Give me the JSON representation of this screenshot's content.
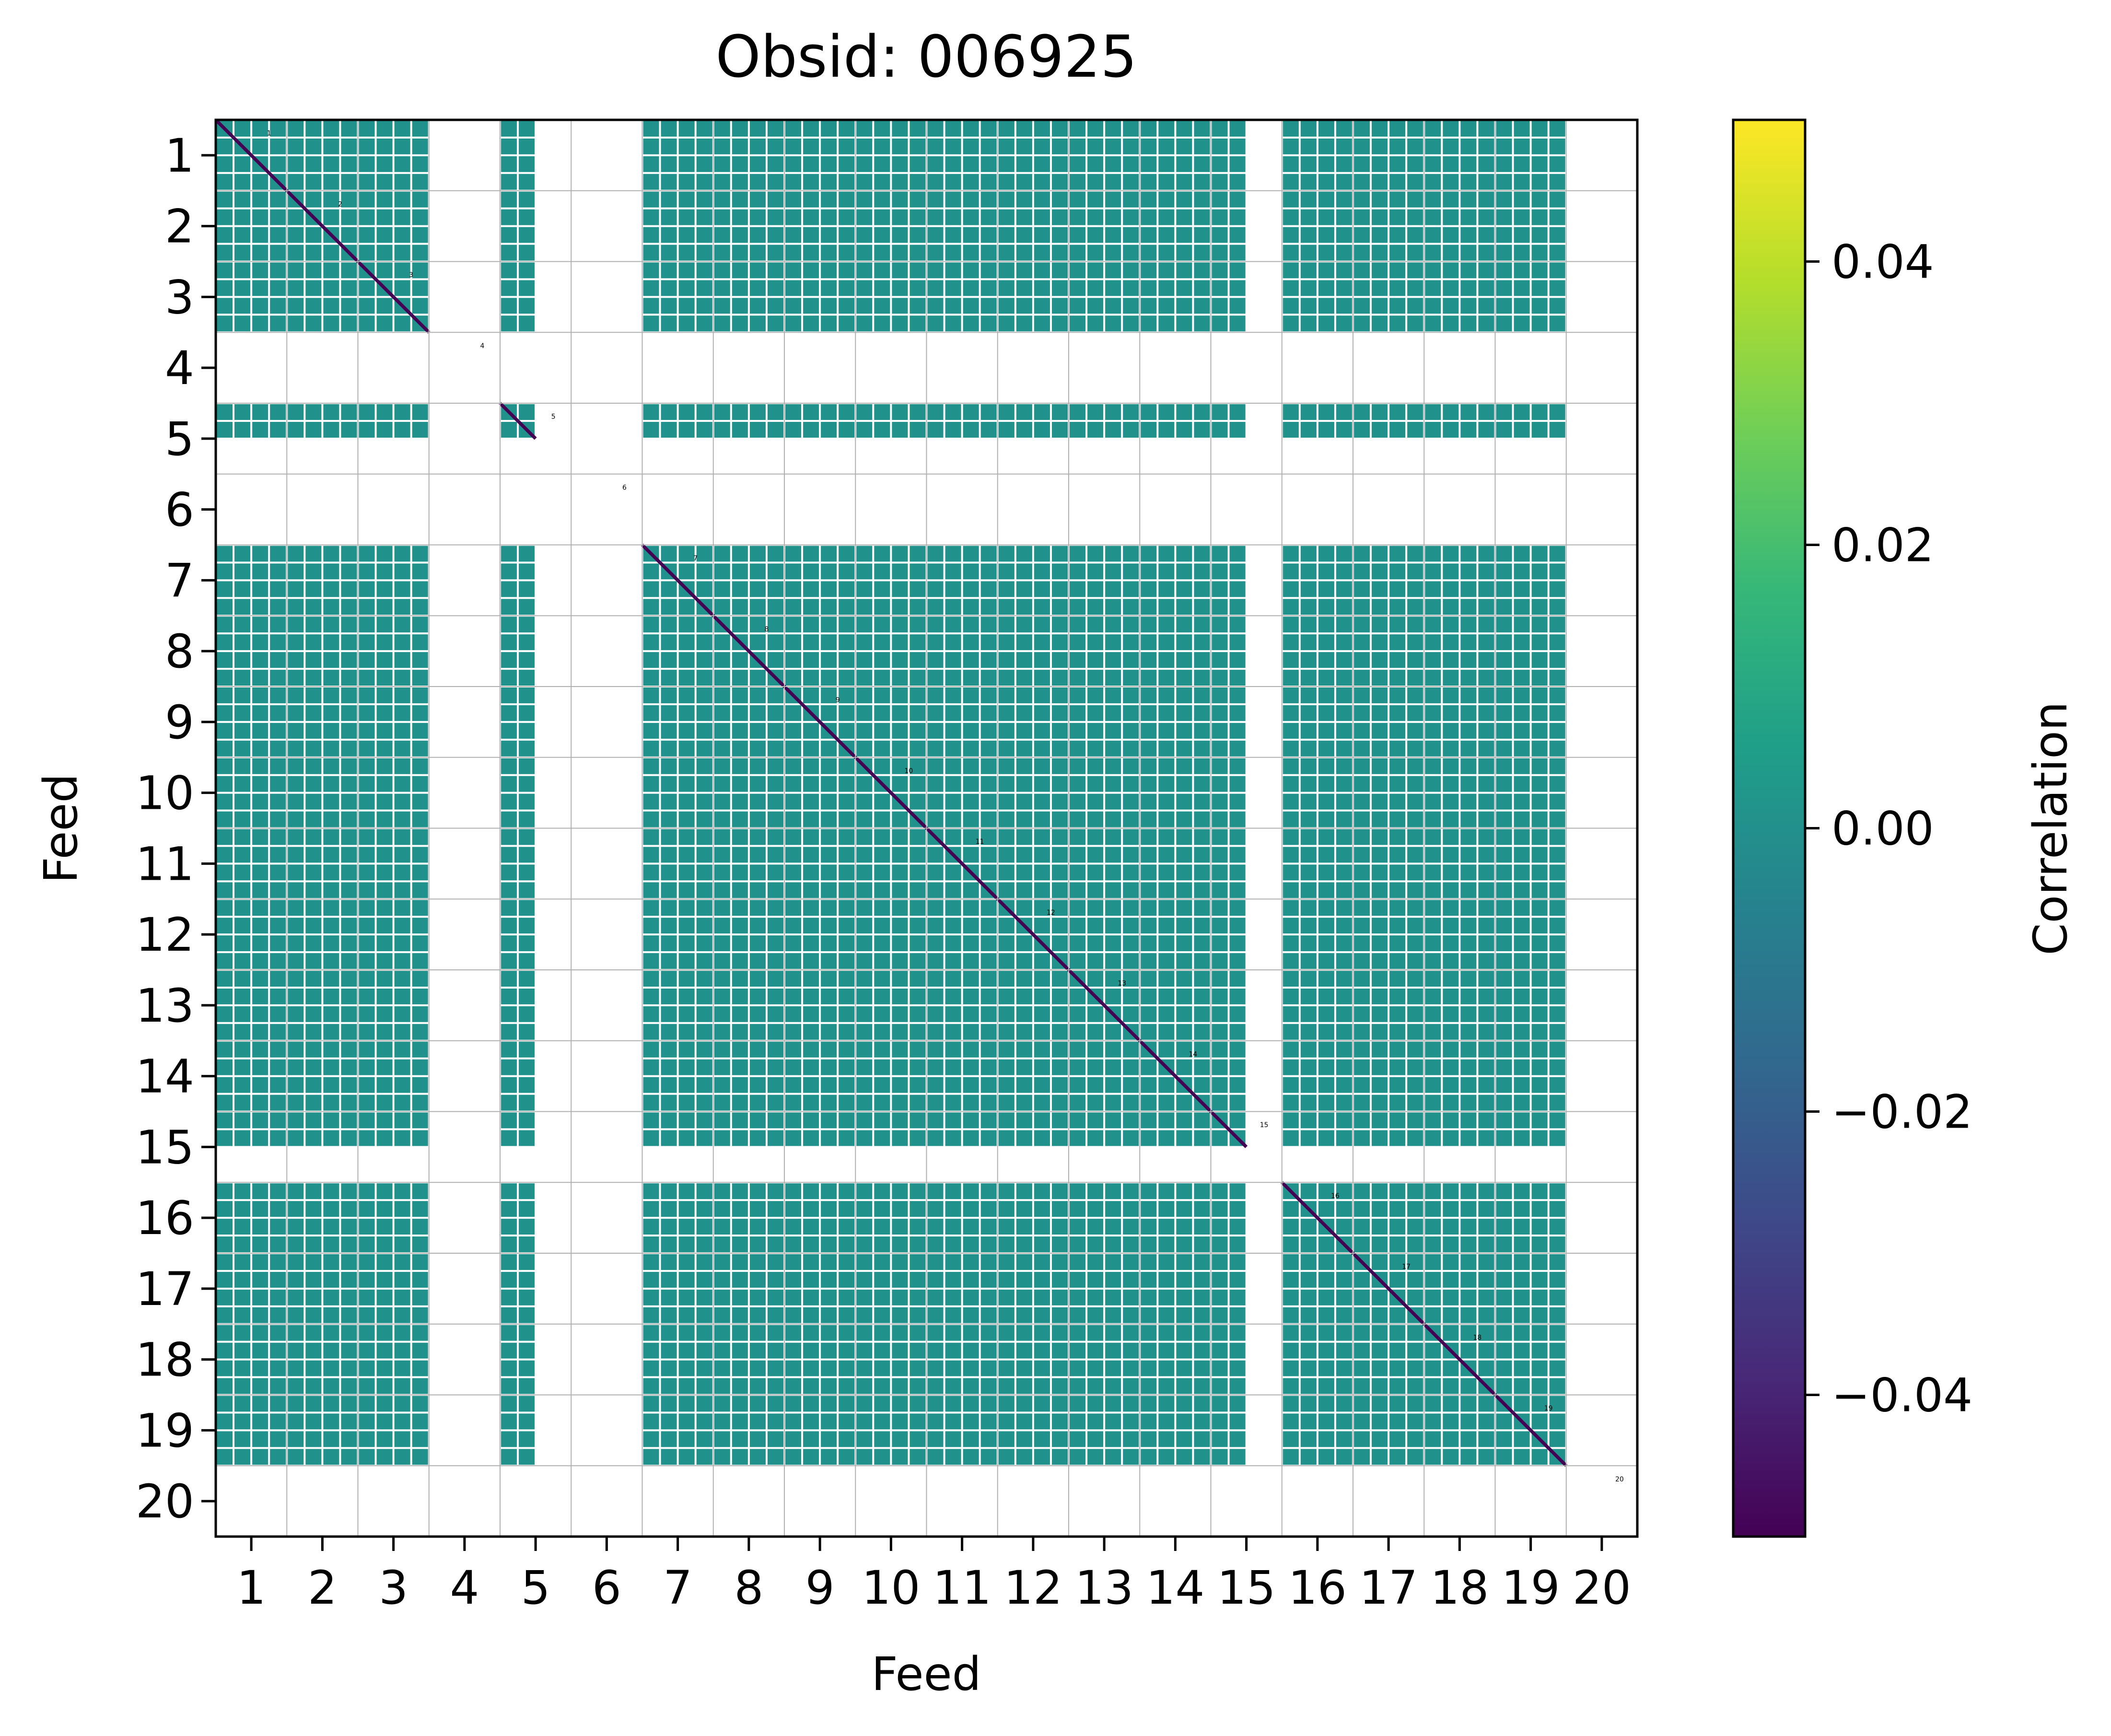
{
  "chart_data": {
    "type": "heatmap",
    "title": "Obsid: 006925",
    "xlabel": "Feed",
    "ylabel": "Feed",
    "x_tick_labels": [
      "1",
      "2",
      "3",
      "4",
      "5",
      "6",
      "7",
      "8",
      "9",
      "10",
      "11",
      "12",
      "13",
      "14",
      "15",
      "16",
      "17",
      "18",
      "19",
      "20"
    ],
    "y_tick_labels": [
      "1",
      "2",
      "3",
      "4",
      "5",
      "6",
      "7",
      "8",
      "9",
      "10",
      "11",
      "12",
      "13",
      "14",
      "15",
      "16",
      "17",
      "18",
      "19",
      "20"
    ],
    "diagonal_labels": [
      "1",
      "2",
      "3",
      "4",
      "5",
      "6",
      "7",
      "8",
      "9",
      "10",
      "11",
      "12",
      "13",
      "14",
      "15",
      "16",
      "17",
      "18",
      "19",
      "20"
    ],
    "feeds": [
      1,
      2,
      3,
      4,
      5,
      6,
      7,
      8,
      9,
      10,
      11,
      12,
      13,
      14,
      15,
      16,
      17,
      18,
      19,
      20
    ],
    "sidebands_per_feed": 4,
    "masked_feeds": [
      4,
      6,
      20
    ],
    "partial_feeds": [
      {
        "feed": 5,
        "sidebands_present": [
          1,
          2
        ]
      },
      {
        "feed": 15,
        "sidebands_present": [
          1,
          2
        ]
      }
    ],
    "off_diagonal_correlation": 0.0,
    "diagonal_correlation": -0.05,
    "grid": true,
    "colorbar": {
      "label": "Correlation",
      "colormap": "viridis",
      "range": [
        -0.05,
        0.05
      ],
      "ticks": [
        0.04,
        0.02,
        0.0,
        -0.02,
        -0.04
      ],
      "tick_labels": [
        "0.04",
        "0.02",
        "0.00",
        "−0.02",
        "−0.04"
      ]
    },
    "colors": {
      "cell": "#21918c",
      "diagonal": "#440154",
      "viridis": [
        "#440154",
        "#482878",
        "#3e4989",
        "#31688e",
        "#26828e",
        "#1f9e89",
        "#35b779",
        "#6ece58",
        "#b5de2b",
        "#fde725"
      ]
    }
  }
}
